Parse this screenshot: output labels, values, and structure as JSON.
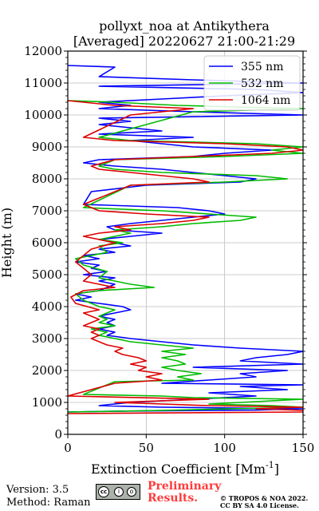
{
  "chart_data": {
    "type": "line",
    "title": "pollyxt_noa at Antikythera",
    "subtitle": "[Averaged] 20220627 21:00-21:29",
    "xlabel": "Extinction Coefficient [Mm",
    "xlabel_sup": "-1",
    "xlabel_end": "]",
    "ylabel": "Height (m)",
    "xlim": [
      0,
      150
    ],
    "ylim": [
      0,
      12000
    ],
    "xticks": [
      0,
      50,
      100,
      150
    ],
    "yticks": [
      0,
      1000,
      2000,
      3000,
      4000,
      5000,
      6000,
      7000,
      8000,
      9000,
      10000,
      11000,
      12000
    ],
    "grid": true,
    "legend_position": "top-right",
    "series": [
      {
        "name": "355 nm",
        "color": "#0000ff",
        "points": [
          [
            0,
            700
          ],
          [
            40,
            730
          ],
          [
            120,
            760
          ],
          [
            150,
            800
          ],
          [
            60,
            850
          ],
          [
            20,
            900
          ],
          [
            40,
            1000
          ],
          [
            80,
            1100
          ],
          [
            120,
            1200
          ],
          [
            90,
            1300
          ],
          [
            140,
            1400
          ],
          [
            110,
            1500
          ],
          [
            150,
            1550
          ],
          [
            60,
            1600
          ],
          [
            90,
            1700
          ],
          [
            120,
            1800
          ],
          [
            110,
            1900
          ],
          [
            140,
            2000
          ],
          [
            80,
            2100
          ],
          [
            150,
            2200
          ],
          [
            110,
            2300
          ],
          [
            120,
            2400
          ],
          [
            140,
            2500
          ],
          [
            150,
            2600
          ],
          [
            110,
            2700
          ],
          [
            80,
            2800
          ],
          [
            60,
            2900
          ],
          [
            40,
            3000
          ],
          [
            25,
            3100
          ],
          [
            30,
            3200
          ],
          [
            20,
            3300
          ],
          [
            30,
            3400
          ],
          [
            25,
            3500
          ],
          [
            30,
            3600
          ],
          [
            20,
            3700
          ],
          [
            30,
            3800
          ],
          [
            40,
            3900
          ],
          [
            35,
            4000
          ],
          [
            20,
            4100
          ],
          [
            5,
            4200
          ],
          [
            15,
            4300
          ],
          [
            5,
            4400
          ],
          [
            20,
            4500
          ],
          [
            25,
            4600
          ],
          [
            30,
            4700
          ],
          [
            20,
            4800
          ],
          [
            30,
            4900
          ],
          [
            10,
            5000
          ],
          [
            25,
            5100
          ],
          [
            15,
            5200
          ],
          [
            20,
            5300
          ],
          [
            5,
            5400
          ],
          [
            20,
            5500
          ],
          [
            10,
            5600
          ],
          [
            30,
            5700
          ],
          [
            20,
            5800
          ],
          [
            40,
            5900
          ],
          [
            30,
            6000
          ],
          [
            20,
            6100
          ],
          [
            40,
            6200
          ],
          [
            60,
            6300
          ],
          [
            30,
            6400
          ],
          [
            25,
            6500
          ],
          [
            40,
            6600
          ],
          [
            60,
            6700
          ],
          [
            80,
            6800
          ],
          [
            100,
            6900
          ],
          [
            90,
            7000
          ],
          [
            70,
            7100
          ],
          [
            10,
            7200
          ],
          [
            15,
            7600
          ],
          [
            50,
            7800
          ],
          [
            110,
            7900
          ],
          [
            120,
            8000
          ],
          [
            100,
            8100
          ],
          [
            80,
            8200
          ],
          [
            60,
            8300
          ],
          [
            30,
            8400
          ],
          [
            10,
            8500
          ],
          [
            20,
            8600
          ],
          [
            80,
            8700
          ],
          [
            100,
            8800
          ],
          [
            130,
            8900
          ],
          [
            80,
            9000
          ],
          [
            60,
            9100
          ],
          [
            40,
            9200
          ],
          [
            80,
            9300
          ],
          [
            20,
            9400
          ],
          [
            60,
            9500
          ],
          [
            40,
            9600
          ],
          [
            20,
            9700
          ],
          [
            40,
            9800
          ],
          [
            20,
            9900
          ],
          [
            150,
            10000
          ],
          [
            80,
            10100
          ],
          [
            20,
            10200
          ],
          [
            40,
            10300
          ],
          [
            20,
            10400
          ],
          [
            60,
            10500
          ],
          [
            100,
            10600
          ],
          [
            150,
            10700
          ],
          [
            120,
            10800
          ],
          [
            20,
            10900
          ],
          [
            150,
            11000
          ],
          [
            80,
            11100
          ],
          [
            20,
            11200
          ],
          [
            30,
            11500
          ],
          [
            0,
            11550
          ]
        ]
      },
      {
        "name": "532 nm",
        "color": "#00bb00",
        "points": [
          [
            0,
            700
          ],
          [
            60,
            750
          ],
          [
            150,
            850
          ],
          [
            130,
            900
          ],
          [
            90,
            950
          ],
          [
            150,
            1100
          ],
          [
            80,
            1150
          ],
          [
            60,
            1200
          ],
          [
            10,
            1250
          ],
          [
            30,
            1650
          ],
          [
            80,
            1700
          ],
          [
            70,
            1800
          ],
          [
            85,
            1900
          ],
          [
            70,
            2000
          ],
          [
            60,
            2100
          ],
          [
            75,
            2200
          ],
          [
            70,
            2300
          ],
          [
            60,
            2400
          ],
          [
            75,
            2500
          ],
          [
            60,
            2600
          ],
          [
            80,
            2700
          ],
          [
            60,
            2800
          ],
          [
            40,
            2900
          ],
          [
            30,
            3000
          ],
          [
            20,
            3100
          ],
          [
            25,
            3200
          ],
          [
            15,
            3300
          ],
          [
            30,
            3400
          ],
          [
            20,
            3500
          ],
          [
            25,
            3600
          ],
          [
            20,
            3700
          ],
          [
            25,
            3800
          ],
          [
            30,
            3900
          ],
          [
            20,
            4000
          ],
          [
            10,
            4200
          ],
          [
            5,
            4400
          ],
          [
            20,
            4500
          ],
          [
            55,
            4600
          ],
          [
            40,
            4700
          ],
          [
            30,
            4800
          ],
          [
            20,
            4900
          ],
          [
            25,
            5100
          ],
          [
            10,
            5300
          ],
          [
            5,
            5500
          ],
          [
            25,
            5700
          ],
          [
            20,
            5900
          ],
          [
            35,
            6000
          ],
          [
            20,
            6100
          ],
          [
            30,
            6200
          ],
          [
            40,
            6300
          ],
          [
            30,
            6400
          ],
          [
            60,
            6500
          ],
          [
            80,
            6600
          ],
          [
            110,
            6700
          ],
          [
            120,
            6800
          ],
          [
            90,
            6900
          ],
          [
            60,
            7000
          ],
          [
            10,
            7100
          ],
          [
            40,
            7800
          ],
          [
            100,
            7900
          ],
          [
            140,
            8000
          ],
          [
            120,
            8100
          ],
          [
            60,
            8200
          ],
          [
            30,
            8300
          ],
          [
            20,
            8400
          ],
          [
            30,
            8600
          ],
          [
            100,
            8700
          ],
          [
            150,
            8800
          ],
          [
            130,
            8900
          ],
          [
            150,
            9000
          ],
          [
            120,
            9100
          ],
          [
            40,
            9200
          ],
          [
            20,
            9300
          ],
          [
            80,
            10100
          ],
          [
            150,
            10200
          ],
          [
            70,
            10300
          ],
          [
            30,
            10400
          ],
          [
            0,
            10450
          ]
        ]
      },
      {
        "name": "1064 nm",
        "color": "#dd0000",
        "points": [
          [
            0,
            650
          ],
          [
            150,
            700
          ],
          [
            150,
            750
          ],
          [
            120,
            800
          ],
          [
            150,
            850
          ],
          [
            90,
            900
          ],
          [
            60,
            950
          ],
          [
            30,
            1000
          ],
          [
            90,
            1100
          ],
          [
            0,
            1200
          ],
          [
            30,
            1600
          ],
          [
            60,
            1700
          ],
          [
            50,
            1800
          ],
          [
            60,
            1900
          ],
          [
            45,
            2000
          ],
          [
            50,
            2100
          ],
          [
            40,
            2200
          ],
          [
            50,
            2300
          ],
          [
            45,
            2400
          ],
          [
            35,
            2500
          ],
          [
            30,
            2600
          ],
          [
            35,
            2700
          ],
          [
            25,
            2800
          ],
          [
            20,
            2900
          ],
          [
            15,
            3000
          ],
          [
            20,
            3100
          ],
          [
            15,
            3200
          ],
          [
            20,
            3300
          ],
          [
            10,
            3400
          ],
          [
            15,
            3500
          ],
          [
            20,
            3600
          ],
          [
            15,
            3700
          ],
          [
            10,
            3800
          ],
          [
            20,
            3900
          ],
          [
            5,
            4100
          ],
          [
            2,
            4300
          ],
          [
            10,
            4500
          ],
          [
            30,
            4600
          ],
          [
            20,
            4700
          ],
          [
            10,
            4800
          ],
          [
            15,
            5000
          ],
          [
            10,
            5200
          ],
          [
            5,
            5400
          ],
          [
            10,
            5600
          ],
          [
            15,
            5800
          ],
          [
            30,
            6000
          ],
          [
            10,
            6200
          ],
          [
            20,
            6300
          ],
          [
            40,
            6400
          ],
          [
            30,
            6500
          ],
          [
            60,
            6600
          ],
          [
            80,
            6700
          ],
          [
            90,
            6800
          ],
          [
            50,
            6900
          ],
          [
            20,
            7000
          ],
          [
            10,
            7200
          ],
          [
            40,
            7800
          ],
          [
            90,
            7900
          ],
          [
            80,
            8000
          ],
          [
            60,
            8100
          ],
          [
            40,
            8200
          ],
          [
            20,
            8300
          ],
          [
            15,
            8400
          ],
          [
            30,
            8600
          ],
          [
            80,
            8700
          ],
          [
            130,
            8800
          ],
          [
            150,
            8900
          ],
          [
            140,
            9000
          ],
          [
            100,
            9100
          ],
          [
            30,
            9200
          ],
          [
            10,
            9300
          ],
          [
            40,
            10000
          ],
          [
            60,
            10100
          ],
          [
            80,
            10200
          ],
          [
            30,
            10300
          ],
          [
            10,
            10400
          ],
          [
            0,
            10450
          ]
        ]
      }
    ]
  },
  "footer": {
    "version": "Version: 3.5",
    "method": "Method: Raman",
    "cc_label": "cc",
    "cc_by": "i",
    "cc_sa": "o",
    "preliminary_line1": "Preliminary",
    "preliminary_line2": "Results.",
    "copyright_line1": "© TROPOS & NOA 2022.",
    "copyright_line2": "CC BY SA 4.0 License."
  }
}
